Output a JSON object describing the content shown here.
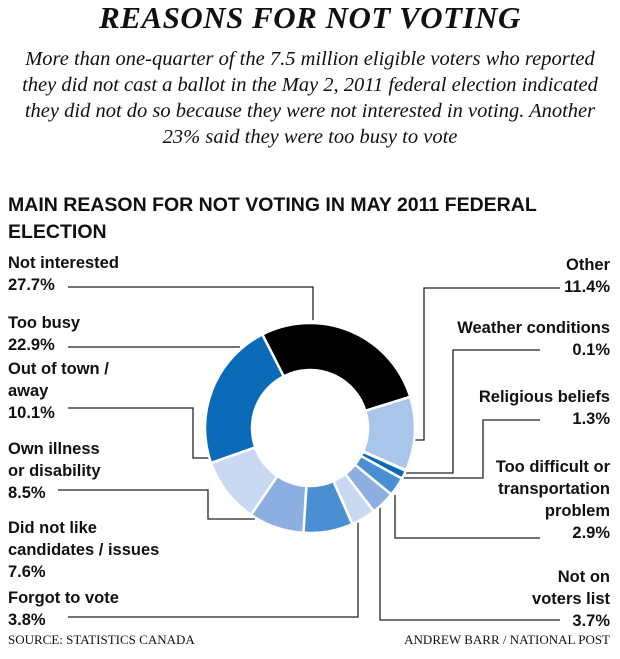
{
  "title": "REASONS FOR NOT VOTING",
  "subtitle": "More than one-quarter of the 7.5 million eligible voters who reported they did not cast a ballot in the May 2, 2011 federal election indicated they did not do so because they were not interested in voting. Another 23% said they were too busy to vote",
  "source": "SOURCE: STATISTICS CANADA",
  "credit": "ANDREW BARR / NATIONAL POST",
  "chart_data": {
    "type": "pie",
    "variant": "donut",
    "title": "MAIN REASON FOR NOT VOTING IN MAY 2011 FEDERAL ELECTION",
    "unit": "%",
    "slices": [
      {
        "label": "Not interested",
        "value": 27.7,
        "display": "27.7%",
        "color": "#000000"
      },
      {
        "label": "Other",
        "value": 11.4,
        "display": "11.4%",
        "color": "#a9c5ea"
      },
      {
        "label": "Weather conditions",
        "value": 0.1,
        "display": "0.1%",
        "color": "#0a6ab8"
      },
      {
        "label": "Religious beliefs",
        "value": 1.3,
        "display": "1.3%",
        "color": "#0a6ab8"
      },
      {
        "label": "Too difficult or transportation problem",
        "value": 2.9,
        "display": "2.9%",
        "color": "#4a8fd2"
      },
      {
        "label": "Not on voters list",
        "value": 3.7,
        "display": "3.7%",
        "color": "#8caee0"
      },
      {
        "label": "Forgot to vote",
        "value": 3.8,
        "display": "3.8%",
        "color": "#c9d9f1"
      },
      {
        "label": "Did not like candidates / issues",
        "value": 7.6,
        "display": "7.6%",
        "color": "#4a8fd2"
      },
      {
        "label": "Own illness or disability",
        "value": 8.5,
        "display": "8.5%",
        "color": "#8caee0"
      },
      {
        "label": "Out of town / away",
        "value": 10.1,
        "display": "10.1%",
        "color": "#c9d9f1"
      },
      {
        "label": "Too busy",
        "value": 22.9,
        "display": "22.9%",
        "color": "#0a6ab8"
      }
    ],
    "labels": {
      "not_interested": "Not interested",
      "too_busy": "Too busy",
      "out_of_town": "Out of town /\naway",
      "illness": "Own illness\nor disability",
      "did_not_like": "Did not like\ncandidates / issues",
      "forgot": "Forgot to vote",
      "other": "Other",
      "weather": "Weather conditions",
      "religious": "Religious beliefs",
      "too_difficult": "Too difficult or\ntransportation\nproblem",
      "voters_list": "Not on\nvoters list"
    }
  }
}
